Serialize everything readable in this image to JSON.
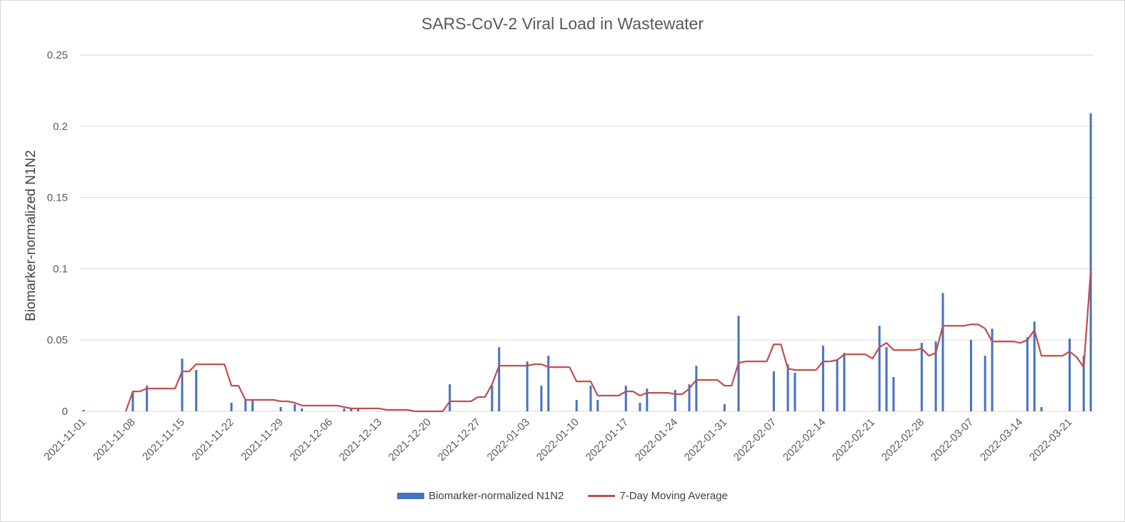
{
  "chart_data": {
    "type": "bar",
    "title": "SARS-CoV-2 Viral Load in Wastewater",
    "xlabel": "",
    "ylabel": "Biomarker-normalized N1N2",
    "ylim": [
      0,
      0.25
    ],
    "y_ticks": [
      "0",
      "0.05",
      "0.1",
      "0.15",
      "0.2",
      "0.25"
    ],
    "x_range": [
      "2021-11-01",
      "2022-03-24"
    ],
    "x_ticks": [
      "2021-11-01",
      "2021-11-08",
      "2021-11-15",
      "2021-11-22",
      "2021-11-29",
      "2021-12-06",
      "2021-12-13",
      "2021-12-20",
      "2021-12-27",
      "2022-01-03",
      "2022-01-10",
      "2022-01-17",
      "2022-01-24",
      "2022-01-31",
      "2022-02-07",
      "2022-02-14",
      "2022-02-21",
      "2022-02-28",
      "2022-03-07",
      "2022-03-14",
      "2022-03-21"
    ],
    "grid": true,
    "legend_position": "bottom",
    "series": [
      {
        "name": "Biomarker-normalized N1N2",
        "type": "bar",
        "color": "#4472c4",
        "points": [
          [
            "2021-11-01",
            0.001
          ],
          [
            "2021-11-08",
            0.014
          ],
          [
            "2021-11-10",
            0.018
          ],
          [
            "2021-11-15",
            0.037
          ],
          [
            "2021-11-17",
            0.029
          ],
          [
            "2021-11-22",
            0.006
          ],
          [
            "2021-11-24",
            0.008
          ],
          [
            "2021-11-25",
            0.008
          ],
          [
            "2021-11-29",
            0.003
          ],
          [
            "2021-12-01",
            0.005
          ],
          [
            "2021-12-02",
            0.002
          ],
          [
            "2021-12-08",
            0.002
          ],
          [
            "2021-12-09",
            0.002
          ],
          [
            "2021-12-10",
            0.002
          ],
          [
            "2021-12-23",
            0.019
          ],
          [
            "2021-12-29",
            0.018
          ],
          [
            "2021-12-30",
            0.045
          ],
          [
            "2022-01-03",
            0.035
          ],
          [
            "2022-01-05",
            0.018
          ],
          [
            "2022-01-06",
            0.039
          ],
          [
            "2022-01-10",
            0.008
          ],
          [
            "2022-01-12",
            0.018
          ],
          [
            "2022-01-13",
            0.008
          ],
          [
            "2022-01-17",
            0.018
          ],
          [
            "2022-01-19",
            0.006
          ],
          [
            "2022-01-20",
            0.016
          ],
          [
            "2022-01-24",
            0.015
          ],
          [
            "2022-01-26",
            0.019
          ],
          [
            "2022-01-27",
            0.032
          ],
          [
            "2022-01-31",
            0.005
          ],
          [
            "2022-02-02",
            0.067
          ],
          [
            "2022-02-07",
            0.028
          ],
          [
            "2022-02-09",
            0.033
          ],
          [
            "2022-02-10",
            0.027
          ],
          [
            "2022-02-14",
            0.046
          ],
          [
            "2022-02-16",
            0.036
          ],
          [
            "2022-02-17",
            0.041
          ],
          [
            "2022-02-22",
            0.06
          ],
          [
            "2022-02-23",
            0.045
          ],
          [
            "2022-02-24",
            0.024
          ],
          [
            "2022-02-28",
            0.048
          ],
          [
            "2022-03-02",
            0.049
          ],
          [
            "2022-03-03",
            0.083
          ],
          [
            "2022-03-07",
            0.05
          ],
          [
            "2022-03-09",
            0.039
          ],
          [
            "2022-03-10",
            0.058
          ],
          [
            "2022-03-15",
            0.052
          ],
          [
            "2022-03-16",
            0.063
          ],
          [
            "2022-03-17",
            0.003
          ],
          [
            "2022-03-21",
            0.051
          ],
          [
            "2022-03-23",
            0.039
          ],
          [
            "2022-03-24",
            0.209
          ]
        ]
      },
      {
        "name": "7-Day Moving Average",
        "type": "line",
        "color": "#c0504d",
        "points": [
          [
            "2021-11-07",
            0.0
          ],
          [
            "2021-11-08",
            0.014
          ],
          [
            "2021-11-09",
            0.014
          ],
          [
            "2021-11-10",
            0.016
          ],
          [
            "2021-11-14",
            0.016
          ],
          [
            "2021-11-15",
            0.028
          ],
          [
            "2021-11-16",
            0.028
          ],
          [
            "2021-11-17",
            0.033
          ],
          [
            "2021-11-21",
            0.033
          ],
          [
            "2021-11-22",
            0.018
          ],
          [
            "2021-11-23",
            0.018
          ],
          [
            "2021-11-24",
            0.008
          ],
          [
            "2021-11-28",
            0.008
          ],
          [
            "2021-11-29",
            0.007
          ],
          [
            "2021-11-30",
            0.007
          ],
          [
            "2021-12-01",
            0.006
          ],
          [
            "2021-12-02",
            0.004
          ],
          [
            "2021-12-07",
            0.004
          ],
          [
            "2021-12-08",
            0.003
          ],
          [
            "2021-12-09",
            0.002
          ],
          [
            "2021-12-13",
            0.002
          ],
          [
            "2021-12-14",
            0.001
          ],
          [
            "2021-12-17",
            0.001
          ],
          [
            "2021-12-18",
            0.0
          ],
          [
            "2021-12-22",
            0.0
          ],
          [
            "2021-12-23",
            0.007
          ],
          [
            "2021-12-26",
            0.007
          ],
          [
            "2021-12-27",
            0.01
          ],
          [
            "2021-12-28",
            0.01
          ],
          [
            "2021-12-29",
            0.019
          ],
          [
            "2021-12-30",
            0.032
          ],
          [
            "2022-01-03",
            0.032
          ],
          [
            "2022-01-04",
            0.033
          ],
          [
            "2022-01-05",
            0.033
          ],
          [
            "2022-01-06",
            0.031
          ],
          [
            "2022-01-09",
            0.031
          ],
          [
            "2022-01-10",
            0.021
          ],
          [
            "2022-01-12",
            0.021
          ],
          [
            "2022-01-13",
            0.011
          ],
          [
            "2022-01-16",
            0.011
          ],
          [
            "2022-01-17",
            0.014
          ],
          [
            "2022-01-18",
            0.014
          ],
          [
            "2022-01-19",
            0.011
          ],
          [
            "2022-01-20",
            0.013
          ],
          [
            "2022-01-23",
            0.013
          ],
          [
            "2022-01-24",
            0.012
          ],
          [
            "2022-01-25",
            0.012
          ],
          [
            "2022-01-26",
            0.016
          ],
          [
            "2022-01-27",
            0.022
          ],
          [
            "2022-01-30",
            0.022
          ],
          [
            "2022-01-31",
            0.018
          ],
          [
            "2022-02-01",
            0.018
          ],
          [
            "2022-02-02",
            0.034
          ],
          [
            "2022-02-03",
            0.035
          ],
          [
            "2022-02-06",
            0.035
          ],
          [
            "2022-02-07",
            0.047
          ],
          [
            "2022-02-08",
            0.047
          ],
          [
            "2022-02-09",
            0.03
          ],
          [
            "2022-02-10",
            0.029
          ],
          [
            "2022-02-13",
            0.029
          ],
          [
            "2022-02-14",
            0.035
          ],
          [
            "2022-02-15",
            0.035
          ],
          [
            "2022-02-16",
            0.036
          ],
          [
            "2022-02-17",
            0.04
          ],
          [
            "2022-02-20",
            0.04
          ],
          [
            "2022-02-21",
            0.037
          ],
          [
            "2022-02-22",
            0.045
          ],
          [
            "2022-02-23",
            0.048
          ],
          [
            "2022-02-24",
            0.043
          ],
          [
            "2022-02-27",
            0.043
          ],
          [
            "2022-02-28",
            0.044
          ],
          [
            "2022-03-01",
            0.039
          ],
          [
            "2022-03-02",
            0.041
          ],
          [
            "2022-03-03",
            0.06
          ],
          [
            "2022-03-06",
            0.06
          ],
          [
            "2022-03-07",
            0.061
          ],
          [
            "2022-03-08",
            0.061
          ],
          [
            "2022-03-09",
            0.058
          ],
          [
            "2022-03-10",
            0.049
          ],
          [
            "2022-03-13",
            0.049
          ],
          [
            "2022-03-14",
            0.048
          ],
          [
            "2022-03-15",
            0.05
          ],
          [
            "2022-03-16",
            0.057
          ],
          [
            "2022-03-17",
            0.039
          ],
          [
            "2022-03-20",
            0.039
          ],
          [
            "2022-03-21",
            0.042
          ],
          [
            "2022-03-22",
            0.038
          ],
          [
            "2022-03-23",
            0.031
          ],
          [
            "2022-03-24",
            0.099
          ]
        ]
      }
    ]
  },
  "colors": {
    "bar": "#4472c4",
    "line": "#c0504d",
    "grid": "#d9d9d9",
    "axis_text": "#595959"
  }
}
